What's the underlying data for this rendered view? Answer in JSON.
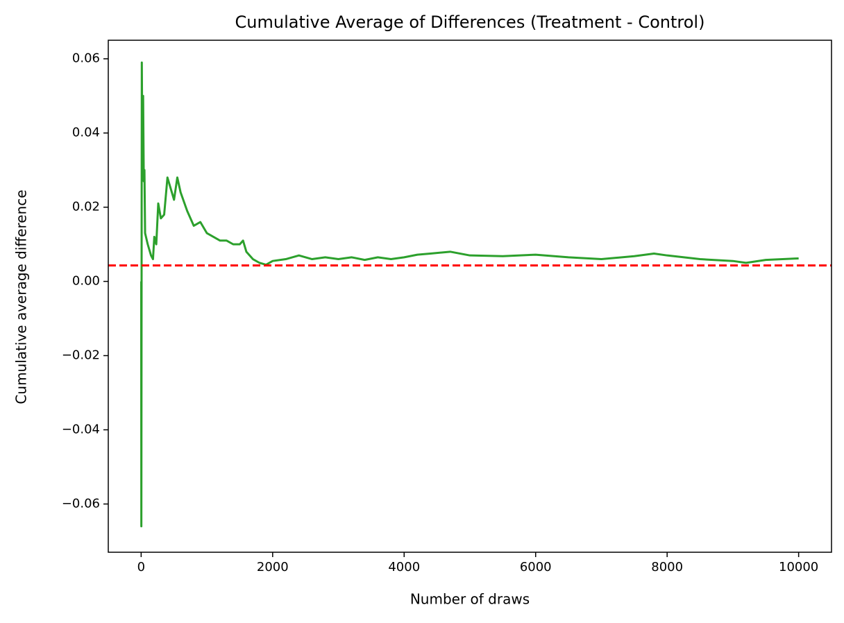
{
  "chart_data": {
    "type": "line",
    "title": "Cumulative Average of Differences (Treatment - Control)",
    "xlabel": "Number of draws",
    "ylabel": "Cumulative average difference",
    "x": [
      1,
      3,
      10,
      20,
      30,
      40,
      50,
      60,
      100,
      150,
      180,
      200,
      230,
      260,
      300,
      350,
      400,
      450,
      500,
      550,
      600,
      700,
      800,
      900,
      1000,
      1100,
      1200,
      1300,
      1400,
      1500,
      1550,
      1600,
      1700,
      1800,
      1900,
      2000,
      2200,
      2400,
      2600,
      2800,
      3000,
      3200,
      3400,
      3600,
      3800,
      4000,
      4200,
      4400,
      4700,
      5000,
      5500,
      6000,
      6500,
      7000,
      7500,
      7800,
      8000,
      8500,
      9000,
      9200,
      9500,
      10000
    ],
    "series": [
      {
        "color": "#2ca02c",
        "values": [
          0.0,
          -0.066,
          0.059,
          0.03,
          0.05,
          0.027,
          0.03,
          0.013,
          0.01,
          0.007,
          0.006,
          0.012,
          0.01,
          0.021,
          0.017,
          0.018,
          0.028,
          0.025,
          0.022,
          0.028,
          0.024,
          0.019,
          0.015,
          0.016,
          0.013,
          0.012,
          0.011,
          0.011,
          0.01,
          0.01,
          0.011,
          0.008,
          0.006,
          0.005,
          0.0045,
          0.0055,
          0.006,
          0.007,
          0.006,
          0.0065,
          0.006,
          0.0065,
          0.0058,
          0.0065,
          0.006,
          0.0065,
          0.0072,
          0.0075,
          0.008,
          0.007,
          0.0068,
          0.0072,
          0.0065,
          0.006,
          0.0068,
          0.0075,
          0.007,
          0.006,
          0.0055,
          0.005,
          0.0058,
          0.0062
        ]
      }
    ],
    "hline": {
      "value": 0.0043,
      "color": "#ff0000",
      "dashed": true
    },
    "xlim": [
      -500,
      10500
    ],
    "xticks": [
      0,
      2000,
      4000,
      6000,
      8000,
      10000
    ],
    "ylim": [
      -0.073,
      0.065
    ],
    "yticks": [
      {
        "value": -0.06,
        "label": "−0.06"
      },
      {
        "value": -0.04,
        "label": "−0.04"
      },
      {
        "value": -0.02,
        "label": "−0.02"
      },
      {
        "value": 0,
        "label": "0.00"
      },
      {
        "value": 0.02,
        "label": "0.02"
      },
      {
        "value": 0.04,
        "label": "0.04"
      },
      {
        "value": 0.06,
        "label": "0.06"
      }
    ],
    "grid": false
  }
}
